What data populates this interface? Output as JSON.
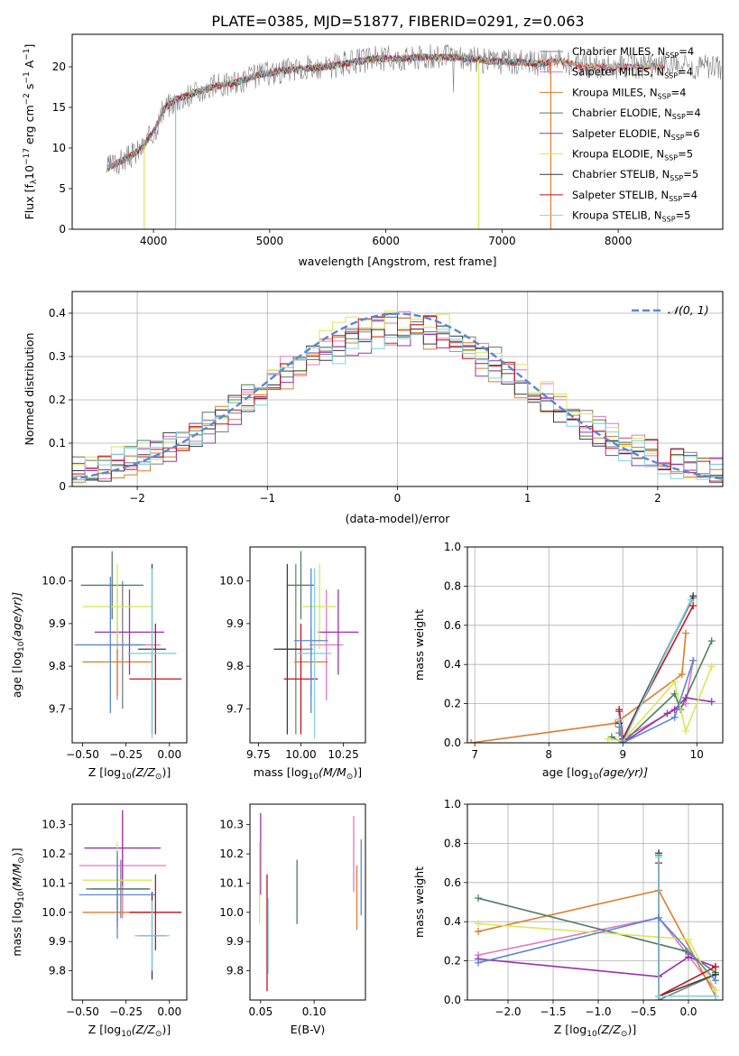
{
  "title": "PLATE=0385, MJD=51877, FIBERID=0291, z=0.063",
  "colors": {
    "Chabrier MILES": "#7f7f7f",
    "Salpeter MILES": "#e377c2",
    "Kroupa MILES": "#e07b2a",
    "Chabrier ELODIE": "#4f7f5c",
    "Salpeter ELODIE": "#9d2fb0",
    "Kroupa ELODIE": "#d8e85a",
    "Chabrier STELIB": "#3a3a3a",
    "Salpeter STELIB": "#c0111f",
    "Kroupa STELIB": "#7fd3e0",
    "normal": "#5b87d6"
  },
  "chart_data": [
    {
      "id": "spectrum",
      "type": "line",
      "xlabel": "wavelength [Angstrom, rest frame]",
      "ylabel": "Flux [f",
      "xlim": [
        3300,
        8900
      ],
      "ylim": [
        0,
        24
      ],
      "xticks": [
        "4000",
        "5000",
        "6000",
        "7000",
        "8000"
      ],
      "yticks": [
        "0",
        "5",
        "10",
        "15",
        "20"
      ],
      "grid": false,
      "legend_position": "right",
      "continuum": {
        "x": [
          3600,
          3800,
          3900,
          4000,
          4100,
          4200,
          4300,
          4400,
          4500,
          4700,
          4900,
          5100,
          5300,
          5500,
          5700,
          5900,
          6100,
          6300,
          6500,
          6700,
          6900,
          7100,
          7300,
          7500,
          7700
        ],
        "y": [
          7.5,
          9,
          10,
          12,
          15,
          16,
          16.5,
          17,
          17.5,
          18,
          19,
          19.5,
          19.8,
          20,
          20.5,
          21,
          21,
          21.2,
          21.2,
          21,
          20.7,
          20.6,
          20.4,
          20.7,
          20
        ]
      },
      "legend": [
        {
          "label": "Chabrier MILES, N",
          "n": "=4"
        },
        {
          "label": "Salpeter MILES, N",
          "n": "=4"
        },
        {
          "label": "Kroupa MILES, N",
          "n": "=4"
        },
        {
          "label": "Chabrier ELODIE, N",
          "n": "=4"
        },
        {
          "label": "Salpeter ELODIE, N",
          "n": "=6"
        },
        {
          "label": "Kroupa ELODIE, N",
          "n": "=5"
        },
        {
          "label": "Chabrier STELIB, N",
          "n": "=5"
        },
        {
          "label": "Salpeter STELIB, N",
          "n": "=4"
        },
        {
          "label": "Kroupa STELIB, N",
          "n": "=5"
        }
      ]
    },
    {
      "id": "residuals",
      "type": "line",
      "xlabel": "(data-model)/error",
      "ylabel": "Normed distribution",
      "xlim": [
        -2.5,
        2.5
      ],
      "ylim": [
        0,
        0.45
      ],
      "xticks": [
        -2,
        -1,
        0,
        1,
        2
      ],
      "yticks": [
        0.0,
        0.1,
        0.2,
        0.3,
        0.4
      ],
      "grid": true,
      "legend": "N(0,1)",
      "legend_position": "top-right",
      "bin_width": 0.1,
      "series_offsets": [
        0.0,
        0.01,
        -0.01,
        0.015,
        -0.015,
        0.02,
        -0.005,
        0.005,
        -0.02
      ]
    },
    {
      "id": "age-vs-Z",
      "type": "scatter",
      "xlabel": "Z [log",
      "ylabel": "age  [log",
      "xlim": [
        -0.56,
        0.1
      ],
      "ylim": [
        9.62,
        10.08
      ],
      "xticks": [
        "-0.50",
        "-0.25",
        "0.00"
      ],
      "yticks": [
        "9.7",
        "9.8",
        "9.9",
        "10.0"
      ],
      "grid": false,
      "points": [
        {
          "name": "Chabrier MILES",
          "x": -0.27,
          "y": 9.85,
          "xerr": 0.1,
          "yerr": 0.15
        },
        {
          "name": "Salpeter MILES",
          "x": -0.3,
          "y": 9.85,
          "xerr": 0.25,
          "yerr": 0.13
        },
        {
          "name": "Kroupa MILES",
          "x": -0.3,
          "y": 9.81,
          "xerr": 0.2,
          "yerr": 0.08
        },
        {
          "name": "Chabrier ELODIE",
          "x": -0.33,
          "y": 9.99,
          "xerr": 0.18,
          "yerr": 0.08
        },
        {
          "name": "Salpeter ELODIE",
          "x": -0.23,
          "y": 9.88,
          "xerr": 0.2,
          "yerr": 0.1
        },
        {
          "name": "Kroupa ELODIE",
          "x": -0.3,
          "y": 9.94,
          "xerr": 0.2,
          "yerr": 0.1
        },
        {
          "name": "Chabrier STELIB",
          "x": -0.1,
          "y": 9.84,
          "xerr": 0.08,
          "yerr": 0.2
        },
        {
          "name": "Salpeter STELIB",
          "x": -0.08,
          "y": 9.77,
          "xerr": 0.15,
          "yerr": 0.13
        },
        {
          "name": "Kroupa STELIB",
          "x": -0.1,
          "y": 9.83,
          "xerr": 0.14,
          "yerr": 0.2
        },
        {
          "name": "normal",
          "x": -0.34,
          "y": 9.85,
          "xerr": 0.2,
          "yerr": 0.16
        }
      ]
    },
    {
      "id": "age-vs-mass",
      "type": "scatter",
      "xlabel": "mass [log",
      "ylabel": "",
      "xlim": [
        9.7,
        10.38
      ],
      "ylim": [
        9.62,
        10.08
      ],
      "xticks": [
        "9.75",
        "10.00",
        "10.25"
      ],
      "yticks": [
        "9.7",
        "9.8",
        "9.9",
        "10.0"
      ],
      "grid": false,
      "points": [
        {
          "name": "Chabrier MILES",
          "x": 9.97,
          "y": 9.84,
          "xerr": 0.1,
          "yerr": 0.2
        },
        {
          "name": "Salpeter MILES",
          "x": 10.15,
          "y": 9.85,
          "xerr": 0.1,
          "yerr": 0.13
        },
        {
          "name": "Kroupa MILES",
          "x": 10.06,
          "y": 9.81,
          "xerr": 0.1,
          "yerr": 0.08
        },
        {
          "name": "Chabrier ELODIE",
          "x": 10.0,
          "y": 9.99,
          "xerr": 0.08,
          "yerr": 0.08
        },
        {
          "name": "Salpeter ELODIE",
          "x": 10.22,
          "y": 9.88,
          "xerr": 0.12,
          "yerr": 0.1
        },
        {
          "name": "Kroupa ELODIE",
          "x": 10.11,
          "y": 9.94,
          "xerr": 0.1,
          "yerr": 0.1
        },
        {
          "name": "Chabrier STELIB",
          "x": 9.92,
          "y": 9.84,
          "xerr": 0.08,
          "yerr": 0.2
        },
        {
          "name": "Salpeter STELIB",
          "x": 10.0,
          "y": 9.77,
          "xerr": 0.1,
          "yerr": 0.13
        },
        {
          "name": "Kroupa STELIB",
          "x": 10.08,
          "y": 9.83,
          "xerr": 0.1,
          "yerr": 0.2
        },
        {
          "name": "normal",
          "x": 10.06,
          "y": 9.86,
          "xerr": 0.1,
          "yerr": 0.17
        }
      ]
    },
    {
      "id": "weight-vs-age",
      "type": "line",
      "xlabel": "age  [log",
      "ylabel": "mass weight",
      "xlim": [
        6.9,
        10.35
      ],
      "ylim": [
        0,
        1.0
      ],
      "xticks": [
        7,
        8,
        9,
        10
      ],
      "yticks": [
        "0.0",
        "0.2",
        "0.4",
        "0.6",
        "0.8",
        "1.0"
      ],
      "grid": true,
      "series": [
        {
          "name": "Chabrier MILES",
          "x": [
            8.95,
            9.0,
            9.95
          ],
          "y": [
            0.05,
            0.02,
            0.74
          ]
        },
        {
          "name": "Salpeter MILES",
          "x": [
            8.95,
            9.0,
            9.85,
            9.95
          ],
          "y": [
            0.1,
            0.02,
            0.2,
            0.42
          ]
        },
        {
          "name": "Kroupa MILES",
          "x": [
            6.95,
            8.9,
            9.8,
            9.85
          ],
          "y": [
            0.0,
            0.1,
            0.35,
            0.56
          ]
        },
        {
          "name": "Chabrier ELODIE",
          "x": [
            8.85,
            9.0,
            9.7,
            9.78,
            10.2
          ],
          "y": [
            0.03,
            0.0,
            0.25,
            0.17,
            0.52
          ]
        },
        {
          "name": "Salpeter ELODIE",
          "x": [
            8.95,
            9.0,
            9.6,
            9.7,
            9.85,
            10.2
          ],
          "y": [
            0.16,
            0.0,
            0.15,
            0.17,
            0.23,
            0.21
          ]
        },
        {
          "name": "Kroupa ELODIE",
          "x": [
            8.8,
            9.0,
            9.7,
            9.85,
            10.2
          ],
          "y": [
            0.02,
            0.01,
            0.31,
            0.06,
            0.39
          ]
        },
        {
          "name": "Chabrier STELIB",
          "x": [
            8.95,
            9.0,
            9.95
          ],
          "y": [
            0.1,
            0.02,
            0.75
          ]
        },
        {
          "name": "Salpeter STELIB",
          "x": [
            8.95,
            9.0,
            9.95
          ],
          "y": [
            0.17,
            0.02,
            0.7
          ]
        },
        {
          "name": "Kroupa STELIB",
          "x": [
            8.95,
            9.0,
            9.92
          ],
          "y": [
            0.12,
            0.0,
            0.73
          ]
        },
        {
          "name": "normal",
          "x": [
            8.95,
            9.0,
            9.7,
            9.95
          ],
          "y": [
            0.08,
            0.0,
            0.13,
            0.42
          ]
        }
      ]
    },
    {
      "id": "mass-vs-Z",
      "type": "scatter",
      "xlabel": "Z [log",
      "ylabel": "mass [log",
      "xlim": [
        -0.56,
        0.1
      ],
      "ylim": [
        9.7,
        10.37
      ],
      "xticks": [
        "-0.50",
        "-0.25",
        "0.00"
      ],
      "yticks": [
        "9.8",
        "9.9",
        "10.0",
        "10.1",
        "10.2",
        "10.3"
      ],
      "grid": false,
      "points": [
        {
          "name": "Chabrier MILES",
          "x": -0.28,
          "y": 10.08,
          "xerr": 0.17,
          "yerr": 0.1
        },
        {
          "name": "Salpeter MILES",
          "x": -0.27,
          "y": 10.16,
          "xerr": 0.25,
          "yerr": 0.18
        },
        {
          "name": "Kroupa MILES",
          "x": -0.3,
          "y": 10.0,
          "xerr": 0.2,
          "yerr": 0.05
        },
        {
          "name": "Chabrier ELODIE",
          "x": -0.3,
          "y": 10.08,
          "xerr": 0.18,
          "yerr": 0.11
        },
        {
          "name": "Salpeter ELODIE",
          "x": -0.27,
          "y": 10.22,
          "xerr": 0.22,
          "yerr": 0.13
        },
        {
          "name": "Kroupa ELODIE",
          "x": -0.3,
          "y": 10.11,
          "xerr": 0.2,
          "yerr": 0.13
        },
        {
          "name": "Chabrier STELIB",
          "x": -0.1,
          "y": 9.92,
          "xerr": 0.08,
          "yerr": 0.15
        },
        {
          "name": "Salpeter STELIB",
          "x": -0.08,
          "y": 10.0,
          "xerr": 0.15,
          "yerr": 0.13
        },
        {
          "name": "Kroupa STELIB",
          "x": -0.1,
          "y": 9.92,
          "xerr": 0.1,
          "yerr": 0.12
        },
        {
          "name": "normal",
          "x": -0.3,
          "y": 10.06,
          "xerr": 0.22,
          "yerr": 0.15
        }
      ]
    },
    {
      "id": "mass-vs-EBV",
      "type": "scatter",
      "xlabel": "E(B-V)",
      "ylabel": "",
      "xlim": [
        0.04,
        0.148
      ],
      "ylim": [
        9.7,
        10.37
      ],
      "xticks": [
        "0.05",
        "0.10"
      ],
      "yticks": [
        "9.8",
        "9.9",
        "10.0",
        "10.1",
        "10.2",
        "10.3"
      ],
      "grid": false,
      "points": [
        {
          "name": "Salpeter ELODIE",
          "x": 0.05,
          "y": 10.2,
          "yerr": 0.14
        },
        {
          "name": "Kroupa ELODIE",
          "x": 0.049,
          "y": 10.1,
          "yerr": 0.14
        },
        {
          "name": "Salpeter STELIB",
          "x": 0.056,
          "y": 9.93,
          "yerr": 0.2
        },
        {
          "name": "Kroupa STELIB",
          "x": 0.057,
          "y": 9.92,
          "yerr": 0.13
        },
        {
          "name": "Chabrier ELODIE",
          "x": 0.084,
          "y": 10.07,
          "yerr": 0.11
        },
        {
          "name": "Salpeter MILES",
          "x": 0.137,
          "y": 10.2,
          "yerr": 0.13
        },
        {
          "name": "Kroupa MILES",
          "x": 0.14,
          "y": 10.05,
          "yerr": 0.11
        },
        {
          "name": "normal",
          "x": 0.144,
          "y": 10.12,
          "yerr": 0.13
        }
      ]
    },
    {
      "id": "weight-vs-Z",
      "type": "line",
      "xlabel": "Z [log",
      "ylabel": "mass weight",
      "xlim": [
        -2.45,
        0.38
      ],
      "ylim": [
        0,
        1.0
      ],
      "xticks": [
        "-2.0",
        "-1.5",
        "-1.0",
        "-0.5",
        "0.0"
      ],
      "yticks": [
        "0.0",
        "0.2",
        "0.4",
        "0.6",
        "0.8",
        "1.0"
      ],
      "grid": true,
      "series": [
        {
          "name": "Chabrier MILES",
          "x": [
            -0.33,
            -0.33,
            0.3
          ],
          "y": [
            0.74,
            0.0,
            0.13
          ]
        },
        {
          "name": "Salpeter MILES",
          "x": [
            -2.33,
            -0.33,
            0.3
          ],
          "y": [
            0.23,
            0.42,
            0.05
          ]
        },
        {
          "name": "Kroupa MILES",
          "x": [
            -2.33,
            -0.33,
            0.3
          ],
          "y": [
            0.35,
            0.56,
            0.02
          ]
        },
        {
          "name": "Chabrier ELODIE",
          "x": [
            -2.33,
            -0.03,
            0.3
          ],
          "y": [
            0.52,
            0.25,
            0.14
          ]
        },
        {
          "name": "Salpeter ELODIE",
          "x": [
            -2.33,
            -0.33,
            0.0,
            0.3
          ],
          "y": [
            0.21,
            0.12,
            0.22,
            0.17
          ]
        },
        {
          "name": "Kroupa ELODIE",
          "x": [
            -2.33,
            0.0,
            0.3
          ],
          "y": [
            0.39,
            0.31,
            0.05
          ]
        },
        {
          "name": "Chabrier STELIB",
          "x": [
            -0.33,
            -0.33,
            0.3
          ],
          "y": [
            0.75,
            0.02,
            0.13
          ]
        },
        {
          "name": "Salpeter STELIB",
          "x": [
            -0.33,
            -0.33,
            0.3
          ],
          "y": [
            0.7,
            0.02,
            0.17
          ]
        },
        {
          "name": "Kroupa STELIB",
          "x": [
            -0.33,
            -0.33,
            0.3
          ],
          "y": [
            0.73,
            0.02,
            0.02
          ]
        },
        {
          "name": "normal",
          "x": [
            -2.33,
            -0.33,
            0.3
          ],
          "y": [
            0.19,
            0.42,
            0.1
          ]
        }
      ]
    }
  ]
}
